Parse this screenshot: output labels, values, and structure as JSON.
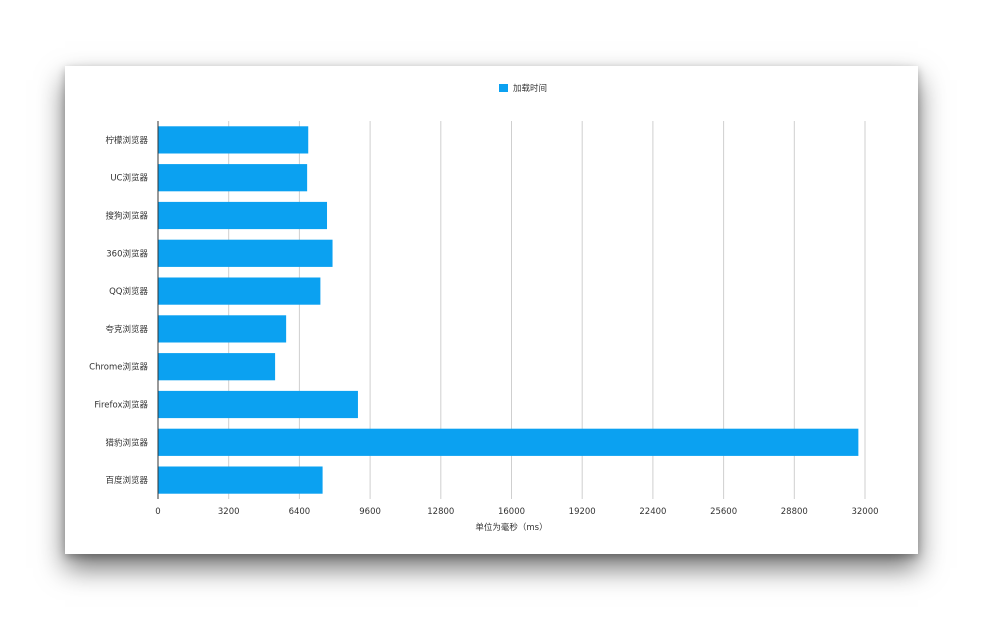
{
  "chart_data": {
    "type": "bar",
    "orientation": "horizontal",
    "categories": [
      "柠檬浏览器",
      "UC浏览器",
      "搜狗浏览器",
      "360浏览器",
      "QQ浏览器",
      "夸克浏览器",
      "Chrome浏览器",
      "Firefox浏览器",
      "猎豹浏览器",
      "百度浏览器"
    ],
    "series": [
      {
        "name": "加载时间",
        "color": "#0ba1f1",
        "values": [
          6800,
          6750,
          7650,
          7900,
          7350,
          5800,
          5300,
          9050,
          31700,
          7450
        ]
      }
    ],
    "xlabel": "单位为毫秒（ms）",
    "ylabel": "",
    "xlim": [
      0,
      32000
    ],
    "xticks": [
      0,
      3200,
      6400,
      9600,
      12800,
      16000,
      19200,
      22400,
      25600,
      28800,
      32000
    ],
    "grid": true,
    "legend_position": "top-center"
  }
}
